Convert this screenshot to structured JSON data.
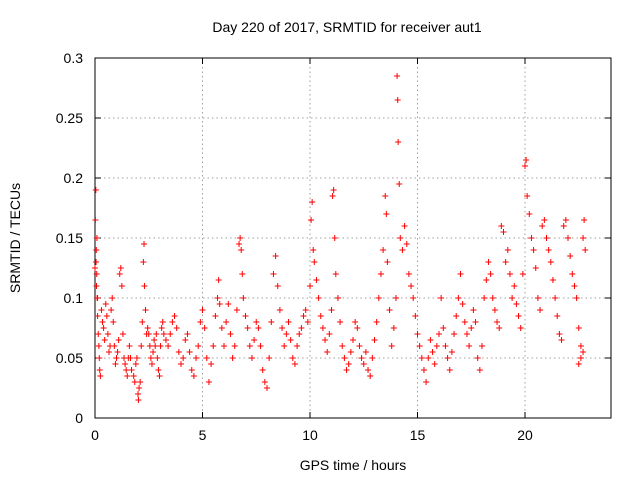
{
  "chart_data": {
    "type": "scatter",
    "title": "Day 220 of 2017, SRMTID for receiver aut1",
    "xlabel": "GPS time / hours",
    "ylabel": "SRMTID / TECUs",
    "xlim": [
      0,
      24
    ],
    "ylim": [
      0,
      0.3
    ],
    "xticks": [
      0,
      5,
      10,
      15,
      20
    ],
    "yticks": [
      0,
      0.05,
      0.1,
      0.15,
      0.2,
      0.25,
      0.3
    ],
    "xtick_labels": [
      "0",
      "5",
      "10",
      "15",
      "20"
    ],
    "ytick_labels": [
      "0",
      "0.05",
      "0.1",
      "0.15",
      "0.2",
      "0.25",
      "0.3"
    ],
    "grid": true,
    "marker": "plus",
    "color": "#ff0000",
    "series": [
      {
        "name": "aut1",
        "points": [
          [
            0.0,
            0.125
          ],
          [
            0.02,
            0.165
          ],
          [
            0.04,
            0.19
          ],
          [
            0.06,
            0.14
          ],
          [
            0.08,
            0.12
          ],
          [
            0.1,
            0.1
          ],
          [
            0.12,
            0.085
          ],
          [
            0.15,
            0.07
          ],
          [
            0.18,
            0.06
          ],
          [
            0.2,
            0.05
          ],
          [
            0.22,
            0.04
          ],
          [
            0.25,
            0.035
          ],
          [
            0.05,
            0.13
          ],
          [
            0.07,
            0.11
          ],
          [
            0.09,
            0.15
          ],
          [
            0.12,
            0.1
          ],
          [
            0.3,
            0.09
          ],
          [
            0.35,
            0.08
          ],
          [
            0.4,
            0.075
          ],
          [
            0.45,
            0.065
          ],
          [
            0.5,
            0.095
          ],
          [
            0.55,
            0.085
          ],
          [
            0.6,
            0.07
          ],
          [
            0.65,
            0.055
          ],
          [
            0.7,
            0.06
          ],
          [
            0.75,
            0.09
          ],
          [
            0.8,
            0.1
          ],
          [
            0.85,
            0.08
          ],
          [
            0.9,
            0.06
          ],
          [
            0.95,
            0.045
          ],
          [
            1.0,
            0.05
          ],
          [
            1.05,
            0.055
          ],
          [
            1.1,
            0.065
          ],
          [
            1.15,
            0.12
          ],
          [
            1.2,
            0.125
          ],
          [
            1.25,
            0.11
          ],
          [
            1.3,
            0.07
          ],
          [
            1.35,
            0.05
          ],
          [
            1.4,
            0.045
          ],
          [
            1.45,
            0.04
          ],
          [
            1.5,
            0.035
          ],
          [
            1.55,
            0.05
          ],
          [
            1.6,
            0.06
          ],
          [
            1.65,
            0.05
          ],
          [
            1.7,
            0.04
          ],
          [
            1.8,
            0.035
          ],
          [
            1.85,
            0.03
          ],
          [
            1.9,
            0.045
          ],
          [
            1.95,
            0.05
          ],
          [
            2.0,
            0.02
          ],
          [
            2.02,
            0.015
          ],
          [
            2.05,
            0.025
          ],
          [
            2.1,
            0.03
          ],
          [
            2.15,
            0.06
          ],
          [
            2.2,
            0.08
          ],
          [
            2.25,
            0.13
          ],
          [
            2.28,
            0.145
          ],
          [
            2.3,
            0.11
          ],
          [
            2.35,
            0.09
          ],
          [
            2.4,
            0.07
          ],
          [
            2.45,
            0.075
          ],
          [
            2.5,
            0.07
          ],
          [
            2.55,
            0.06
          ],
          [
            2.6,
            0.05
          ],
          [
            2.65,
            0.045
          ],
          [
            2.7,
            0.055
          ],
          [
            2.75,
            0.065
          ],
          [
            2.8,
            0.06
          ],
          [
            2.85,
            0.07
          ],
          [
            2.9,
            0.05
          ],
          [
            2.95,
            0.04
          ],
          [
            3.0,
            0.035
          ],
          [
            3.05,
            0.06
          ],
          [
            3.1,
            0.075
          ],
          [
            3.15,
            0.08
          ],
          [
            3.2,
            0.07
          ],
          [
            3.3,
            0.065
          ],
          [
            3.4,
            0.06
          ],
          [
            3.5,
            0.07
          ],
          [
            3.6,
            0.08
          ],
          [
            3.7,
            0.085
          ],
          [
            3.8,
            0.075
          ],
          [
            3.9,
            0.055
          ],
          [
            4.0,
            0.045
          ],
          [
            4.1,
            0.05
          ],
          [
            4.2,
            0.065
          ],
          [
            4.3,
            0.07
          ],
          [
            4.4,
            0.055
          ],
          [
            4.5,
            0.04
          ],
          [
            4.6,
            0.035
          ],
          [
            4.7,
            0.05
          ],
          [
            4.8,
            0.06
          ],
          [
            4.9,
            0.08
          ],
          [
            5.0,
            0.09
          ],
          [
            5.1,
            0.075
          ],
          [
            5.2,
            0.05
          ],
          [
            5.3,
            0.03
          ],
          [
            5.4,
            0.045
          ],
          [
            5.5,
            0.06
          ],
          [
            5.6,
            0.085
          ],
          [
            5.7,
            0.1
          ],
          [
            5.75,
            0.115
          ],
          [
            5.8,
            0.095
          ],
          [
            5.9,
            0.075
          ],
          [
            6.0,
            0.06
          ],
          [
            6.1,
            0.08
          ],
          [
            6.2,
            0.095
          ],
          [
            6.3,
            0.07
          ],
          [
            6.4,
            0.05
          ],
          [
            6.5,
            0.06
          ],
          [
            6.6,
            0.09
          ],
          [
            6.7,
            0.145
          ],
          [
            6.75,
            0.15
          ],
          [
            6.8,
            0.14
          ],
          [
            6.85,
            0.12
          ],
          [
            6.9,
            0.1
          ],
          [
            7.0,
            0.085
          ],
          [
            7.1,
            0.075
          ],
          [
            7.2,
            0.06
          ],
          [
            7.3,
            0.05
          ],
          [
            7.4,
            0.065
          ],
          [
            7.5,
            0.08
          ],
          [
            7.6,
            0.075
          ],
          [
            7.7,
            0.06
          ],
          [
            7.8,
            0.04
          ],
          [
            7.9,
            0.03
          ],
          [
            8.0,
            0.025
          ],
          [
            8.1,
            0.05
          ],
          [
            8.2,
            0.08
          ],
          [
            8.3,
            0.12
          ],
          [
            8.4,
            0.135
          ],
          [
            8.5,
            0.11
          ],
          [
            8.6,
            0.09
          ],
          [
            8.7,
            0.075
          ],
          [
            8.8,
            0.06
          ],
          [
            8.9,
            0.07
          ],
          [
            9.0,
            0.08
          ],
          [
            9.1,
            0.065
          ],
          [
            9.2,
            0.05
          ],
          [
            9.3,
            0.045
          ],
          [
            9.4,
            0.06
          ],
          [
            9.5,
            0.07
          ],
          [
            9.6,
            0.075
          ],
          [
            9.7,
            0.085
          ],
          [
            9.8,
            0.09
          ],
          [
            9.9,
            0.08
          ],
          [
            10.0,
            0.11
          ],
          [
            10.05,
            0.165
          ],
          [
            10.1,
            0.18
          ],
          [
            10.15,
            0.14
          ],
          [
            10.2,
            0.13
          ],
          [
            10.3,
            0.115
          ],
          [
            10.4,
            0.1
          ],
          [
            10.5,
            0.085
          ],
          [
            10.6,
            0.075
          ],
          [
            10.7,
            0.065
          ],
          [
            10.8,
            0.055
          ],
          [
            10.9,
            0.07
          ],
          [
            11.0,
            0.09
          ],
          [
            11.05,
            0.185
          ],
          [
            11.1,
            0.19
          ],
          [
            11.15,
            0.15
          ],
          [
            11.2,
            0.12
          ],
          [
            11.3,
            0.1
          ],
          [
            11.4,
            0.08
          ],
          [
            11.5,
            0.06
          ],
          [
            11.6,
            0.05
          ],
          [
            11.7,
            0.04
          ],
          [
            11.8,
            0.045
          ],
          [
            11.9,
            0.055
          ],
          [
            12.0,
            0.065
          ],
          [
            12.1,
            0.08
          ],
          [
            12.2,
            0.075
          ],
          [
            12.3,
            0.06
          ],
          [
            12.4,
            0.05
          ],
          [
            12.5,
            0.045
          ],
          [
            12.6,
            0.055
          ],
          [
            12.7,
            0.04
          ],
          [
            12.8,
            0.035
          ],
          [
            12.9,
            0.05
          ],
          [
            13.0,
            0.065
          ],
          [
            13.1,
            0.08
          ],
          [
            13.2,
            0.1
          ],
          [
            13.3,
            0.12
          ],
          [
            13.4,
            0.14
          ],
          [
            13.5,
            0.185
          ],
          [
            13.55,
            0.17
          ],
          [
            13.6,
            0.13
          ],
          [
            13.7,
            0.09
          ],
          [
            13.8,
            0.06
          ],
          [
            13.9,
            0.075
          ],
          [
            14.0,
            0.1
          ],
          [
            14.05,
            0.285
          ],
          [
            14.08,
            0.265
          ],
          [
            14.1,
            0.23
          ],
          [
            14.15,
            0.195
          ],
          [
            14.2,
            0.15
          ],
          [
            14.3,
            0.14
          ],
          [
            14.4,
            0.16
          ],
          [
            14.5,
            0.145
          ],
          [
            14.6,
            0.12
          ],
          [
            14.7,
            0.11
          ],
          [
            14.8,
            0.1
          ],
          [
            14.9,
            0.085
          ],
          [
            15.0,
            0.07
          ],
          [
            15.1,
            0.06
          ],
          [
            15.2,
            0.05
          ],
          [
            15.3,
            0.04
          ],
          [
            15.4,
            0.03
          ],
          [
            15.5,
            0.05
          ],
          [
            15.6,
            0.065
          ],
          [
            15.7,
            0.055
          ],
          [
            15.8,
            0.045
          ],
          [
            15.9,
            0.06
          ],
          [
            16.0,
            0.07
          ],
          [
            16.1,
            0.1
          ],
          [
            16.2,
            0.075
          ],
          [
            16.3,
            0.06
          ],
          [
            16.4,
            0.05
          ],
          [
            16.5,
            0.04
          ],
          [
            16.6,
            0.055
          ],
          [
            16.7,
            0.07
          ],
          [
            16.8,
            0.085
          ],
          [
            16.9,
            0.1
          ],
          [
            17.0,
            0.12
          ],
          [
            17.1,
            0.095
          ],
          [
            17.2,
            0.08
          ],
          [
            17.3,
            0.07
          ],
          [
            17.4,
            0.06
          ],
          [
            17.5,
            0.075
          ],
          [
            17.6,
            0.09
          ],
          [
            17.7,
            0.08
          ],
          [
            17.8,
            0.05
          ],
          [
            17.9,
            0.04
          ],
          [
            18.0,
            0.06
          ],
          [
            18.1,
            0.1
          ],
          [
            18.2,
            0.115
          ],
          [
            18.3,
            0.13
          ],
          [
            18.4,
            0.12
          ],
          [
            18.5,
            0.1
          ],
          [
            18.6,
            0.09
          ],
          [
            18.7,
            0.08
          ],
          [
            18.8,
            0.075
          ],
          [
            18.9,
            0.16
          ],
          [
            19.0,
            0.155
          ],
          [
            19.1,
            0.13
          ],
          [
            19.2,
            0.14
          ],
          [
            19.3,
            0.12
          ],
          [
            19.4,
            0.1
          ],
          [
            19.5,
            0.11
          ],
          [
            19.6,
            0.095
          ],
          [
            19.7,
            0.085
          ],
          [
            19.8,
            0.075
          ],
          [
            19.9,
            0.12
          ],
          [
            20.0,
            0.21
          ],
          [
            20.05,
            0.215
          ],
          [
            20.1,
            0.185
          ],
          [
            20.2,
            0.17
          ],
          [
            20.3,
            0.15
          ],
          [
            20.4,
            0.14
          ],
          [
            20.5,
            0.125
          ],
          [
            20.6,
            0.1
          ],
          [
            20.7,
            0.09
          ],
          [
            20.8,
            0.16
          ],
          [
            20.9,
            0.165
          ],
          [
            21.0,
            0.15
          ],
          [
            21.1,
            0.14
          ],
          [
            21.2,
            0.13
          ],
          [
            21.3,
            0.115
          ],
          [
            21.4,
            0.1
          ],
          [
            21.5,
            0.085
          ],
          [
            21.6,
            0.07
          ],
          [
            21.7,
            0.065
          ],
          [
            21.8,
            0.16
          ],
          [
            21.9,
            0.165
          ],
          [
            22.0,
            0.15
          ],
          [
            22.1,
            0.135
          ],
          [
            22.2,
            0.12
          ],
          [
            22.3,
            0.11
          ],
          [
            22.4,
            0.1
          ],
          [
            22.5,
            0.075
          ],
          [
            22.6,
            0.06
          ],
          [
            22.7,
            0.15
          ],
          [
            22.75,
            0.165
          ],
          [
            22.8,
            0.14
          ],
          [
            22.7,
            0.055
          ],
          [
            22.6,
            0.05
          ],
          [
            22.5,
            0.045
          ]
        ]
      }
    ]
  }
}
